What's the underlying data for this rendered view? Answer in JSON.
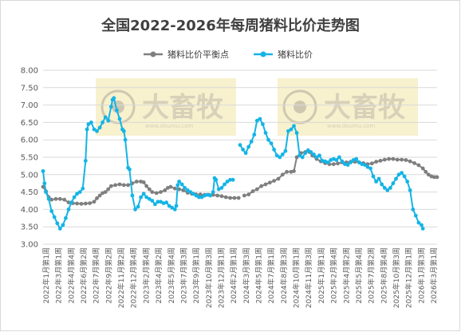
{
  "chart_data": {
    "type": "line",
    "title": "全国2022-2026年每周猪料比价走势图",
    "ylim": [
      3.0,
      8.0
    ],
    "yticks": [
      "8.00",
      "7.50",
      "7.00",
      "6.50",
      "6.00",
      "5.50",
      "5.00",
      "4.50",
      "4.00",
      "3.50",
      "3.00"
    ],
    "x_labels": [
      "2022年1月第1周",
      "2022年3月第1周",
      "2022年4月第4周",
      "2022年6月第2周",
      "2022年7月第4周",
      "2022年9月第2周",
      "2022年11月第2周",
      "2022年12月第4周",
      "2023年2月第4周",
      "2023年4月第2周",
      "2023年5月第4周",
      "2023年7月第3周",
      "2023年9月第1周",
      "2023年10月第3周",
      "2023年12月第1周",
      "2024年2月第1周",
      "2024年3月第3周",
      "2024年5月第1周",
      "2024年7月第1周",
      "2024年8月第3周",
      "2024年10月第1周",
      "2024年11月第3周",
      "2025年1月第1周",
      "2025年2月第4周",
      "2025年4月第2周",
      "2025年5月第4周",
      "2025年7月第2周",
      "2025年8月第4周",
      "2025年10月第3周",
      "2025年12月第1周",
      "2026年1月第3周",
      "2026年3月第1周"
    ],
    "legend_position": "top-center",
    "grid": true,
    "watermark": {
      "text": "大畜牧",
      "sub": "www.dxumu.com"
    },
    "series": [
      {
        "name": "猪料比价平衡点",
        "color": "#7f7f7f",
        "segments": [
          [
            [
              0,
              4.65
            ],
            [
              2,
              4.52
            ],
            [
              4,
              4.35
            ],
            [
              6,
              4.28
            ],
            [
              9,
              4.3
            ],
            [
              12,
              4.3
            ],
            [
              15,
              4.28
            ],
            [
              18,
              4.2
            ],
            [
              21,
              4.18
            ],
            [
              24,
              4.17
            ],
            [
              27,
              4.16
            ],
            [
              30,
              4.17
            ],
            [
              33,
              4.18
            ],
            [
              36,
              4.22
            ],
            [
              38,
              4.32
            ],
            [
              40,
              4.4
            ],
            [
              42,
              4.47
            ],
            [
              44,
              4.5
            ],
            [
              46,
              4.58
            ],
            [
              48,
              4.67
            ],
            [
              51,
              4.7
            ],
            [
              54,
              4.72
            ],
            [
              57,
              4.7
            ],
            [
              60,
              4.7
            ],
            [
              63,
              4.75
            ],
            [
              66,
              4.8
            ],
            [
              69,
              4.8
            ],
            [
              71,
              4.78
            ],
            [
              73,
              4.67
            ],
            [
              75,
              4.58
            ],
            [
              77,
              4.5
            ],
            [
              80,
              4.47
            ],
            [
              83,
              4.5
            ],
            [
              86,
              4.55
            ],
            [
              88,
              4.62
            ],
            [
              90,
              4.65
            ],
            [
              93,
              4.6
            ],
            [
              96,
              4.58
            ],
            [
              99,
              4.55
            ],
            [
              102,
              4.48
            ],
            [
              105,
              4.45
            ],
            [
              108,
              4.43
            ],
            [
              111,
              4.43
            ],
            [
              114,
              4.42
            ],
            [
              117,
              4.42
            ],
            [
              120,
              4.42
            ],
            [
              123,
              4.4
            ],
            [
              126,
              4.38
            ],
            [
              129,
              4.35
            ],
            [
              132,
              4.33
            ],
            [
              135,
              4.33
            ],
            [
              138,
              4.33
            ]
          ],
          [
            [
              142,
              4.4
            ],
            [
              145,
              4.43
            ],
            [
              148,
              4.52
            ],
            [
              151,
              4.58
            ],
            [
              154,
              4.67
            ],
            [
              157,
              4.72
            ],
            [
              160,
              4.77
            ],
            [
              163,
              4.82
            ],
            [
              166,
              4.88
            ],
            [
              169,
              5.0
            ],
            [
              172,
              5.08
            ],
            [
              175,
              5.08
            ],
            [
              177,
              5.1
            ],
            [
              179,
              5.5
            ],
            [
              182,
              5.62
            ],
            [
              185,
              5.65
            ],
            [
              188,
              5.65
            ],
            [
              190,
              5.55
            ],
            [
              193,
              5.45
            ],
            [
              196,
              5.38
            ],
            [
              199,
              5.33
            ],
            [
              202,
              5.3
            ],
            [
              205,
              5.3
            ],
            [
              208,
              5.32
            ],
            [
              211,
              5.35
            ],
            [
              214,
              5.35
            ],
            [
              217,
              5.37
            ],
            [
              220,
              5.37
            ],
            [
              223,
              5.35
            ],
            [
              226,
              5.33
            ],
            [
              229,
              5.3
            ],
            [
              232,
              5.32
            ],
            [
              235,
              5.37
            ],
            [
              238,
              5.4
            ],
            [
              241,
              5.43
            ],
            [
              244,
              5.45
            ],
            [
              247,
              5.45
            ],
            [
              250,
              5.43
            ],
            [
              253,
              5.43
            ],
            [
              256,
              5.42
            ],
            [
              259,
              5.38
            ],
            [
              262,
              5.33
            ],
            [
              265,
              5.27
            ],
            [
              268,
              5.18
            ],
            [
              270,
              5.08
            ],
            [
              272,
              5.0
            ],
            [
              274,
              4.95
            ],
            [
              276,
              4.93
            ],
            [
              278,
              4.93
            ]
          ]
        ]
      },
      {
        "name": "猪料比价",
        "color": "#14b4e6",
        "segments": [
          [
            [
              0,
              5.1
            ],
            [
              1,
              4.75
            ],
            [
              2,
              4.5
            ],
            [
              4,
              4.3
            ],
            [
              6,
              3.95
            ],
            [
              8,
              3.78
            ],
            [
              10,
              3.6
            ],
            [
              12,
              3.45
            ],
            [
              14,
              3.55
            ],
            [
              16,
              3.75
            ],
            [
              18,
              4.0
            ],
            [
              20,
              4.2
            ],
            [
              22,
              4.35
            ],
            [
              24,
              4.45
            ],
            [
              26,
              4.5
            ],
            [
              28,
              4.6
            ],
            [
              30,
              5.4
            ],
            [
              31,
              6.3
            ],
            [
              32,
              6.45
            ],
            [
              34,
              6.5
            ],
            [
              36,
              6.3
            ],
            [
              38,
              6.25
            ],
            [
              40,
              6.35
            ],
            [
              42,
              6.5
            ],
            [
              44,
              6.65
            ],
            [
              46,
              6.55
            ],
            [
              48,
              6.95
            ],
            [
              49,
              7.15
            ],
            [
              50,
              7.2
            ],
            [
              52,
              6.85
            ],
            [
              54,
              6.6
            ],
            [
              56,
              6.3
            ],
            [
              57,
              6.25
            ],
            [
              58,
              6.0
            ],
            [
              60,
              5.2
            ],
            [
              61,
              5.15
            ],
            [
              63,
              4.4
            ],
            [
              65,
              4.0
            ],
            [
              67,
              4.08
            ],
            [
              69,
              4.35
            ],
            [
              71,
              4.45
            ],
            [
              73,
              4.35
            ],
            [
              75,
              4.3
            ],
            [
              77,
              4.25
            ],
            [
              79,
              4.15
            ],
            [
              81,
              4.22
            ],
            [
              83,
              4.22
            ],
            [
              85,
              4.18
            ],
            [
              87,
              4.2
            ],
            [
              89,
              4.1
            ],
            [
              91,
              4.05
            ],
            [
              93,
              4.0
            ],
            [
              94,
              4.1
            ],
            [
              95,
              4.7
            ],
            [
              96,
              4.8
            ],
            [
              98,
              4.72
            ],
            [
              100,
              4.62
            ],
            [
              102,
              4.55
            ],
            [
              104,
              4.5
            ],
            [
              106,
              4.45
            ],
            [
              108,
              4.4
            ],
            [
              110,
              4.35
            ],
            [
              112,
              4.35
            ],
            [
              114,
              4.4
            ],
            [
              116,
              4.42
            ],
            [
              118,
              4.4
            ],
            [
              120,
              4.5
            ],
            [
              121,
              4.9
            ],
            [
              122,
              4.85
            ],
            [
              124,
              4.58
            ],
            [
              126,
              4.62
            ],
            [
              128,
              4.72
            ],
            [
              130,
              4.8
            ],
            [
              132,
              4.85
            ],
            [
              134,
              4.85
            ]
          ],
          [
            [
              139,
              5.85
            ],
            [
              141,
              5.72
            ],
            [
              143,
              5.62
            ],
            [
              145,
              5.8
            ],
            [
              147,
              5.95
            ],
            [
              149,
              6.15
            ],
            [
              151,
              6.55
            ],
            [
              153,
              6.6
            ],
            [
              155,
              6.45
            ],
            [
              157,
              6.2
            ],
            [
              159,
              6.0
            ],
            [
              161,
              5.9
            ],
            [
              163,
              5.72
            ],
            [
              165,
              5.55
            ],
            [
              167,
              5.5
            ],
            [
              169,
              5.58
            ],
            [
              171,
              5.68
            ],
            [
              173,
              6.25
            ],
            [
              175,
              6.3
            ],
            [
              177,
              6.4
            ],
            [
              179,
              6.2
            ],
            [
              181,
              5.55
            ],
            [
              183,
              5.5
            ],
            [
              185,
              5.62
            ],
            [
              187,
              5.7
            ],
            [
              189,
              5.65
            ],
            [
              191,
              5.58
            ],
            [
              193,
              5.5
            ],
            [
              195,
              5.55
            ],
            [
              197,
              5.4
            ],
            [
              199,
              5.38
            ],
            [
              201,
              5.35
            ],
            [
              203,
              5.42
            ],
            [
              205,
              5.45
            ],
            [
              207,
              5.42
            ],
            [
              209,
              5.5
            ],
            [
              211,
              5.38
            ],
            [
              213,
              5.3
            ],
            [
              215,
              5.28
            ],
            [
              217,
              5.35
            ],
            [
              219,
              5.42
            ],
            [
              221,
              5.45
            ],
            [
              223,
              5.35
            ],
            [
              225,
              5.3
            ],
            [
              227,
              5.28
            ],
            [
              229,
              5.22
            ],
            [
              231,
              5.18
            ],
            [
              233,
              4.95
            ],
            [
              235,
              4.8
            ],
            [
              237,
              4.88
            ],
            [
              239,
              4.72
            ],
            [
              241,
              4.62
            ],
            [
              243,
              4.55
            ],
            [
              245,
              4.62
            ],
            [
              247,
              4.75
            ],
            [
              249,
              4.88
            ],
            [
              251,
              5.0
            ],
            [
              253,
              5.05
            ],
            [
              255,
              4.95
            ],
            [
              257,
              4.8
            ],
            [
              259,
              4.55
            ],
            [
              261,
              4.0
            ],
            [
              263,
              3.82
            ],
            [
              265,
              3.62
            ],
            [
              267,
              3.55
            ],
            [
              268,
              3.45
            ]
          ]
        ]
      }
    ]
  }
}
